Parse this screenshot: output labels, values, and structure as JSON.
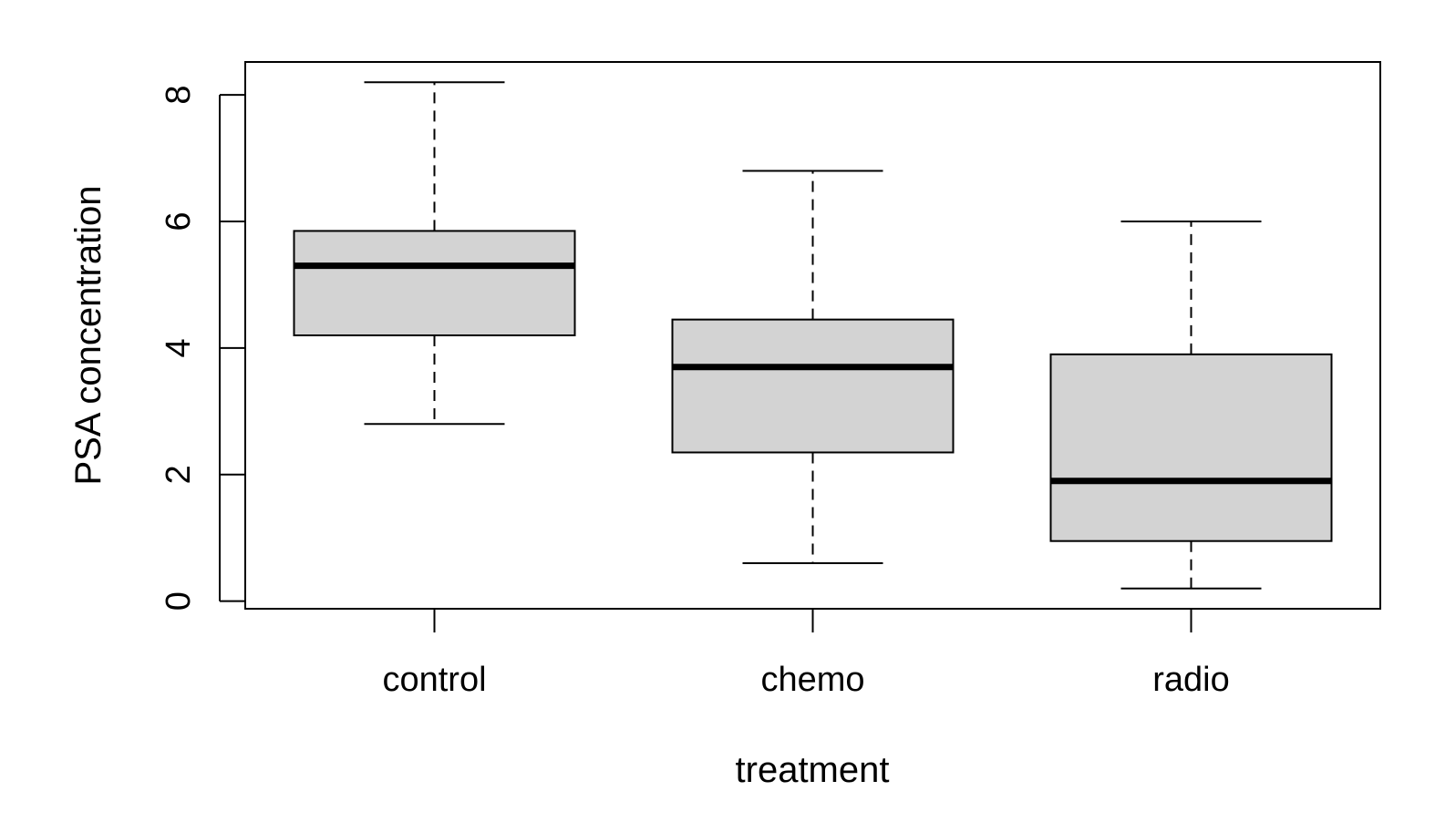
{
  "chart_data": {
    "type": "boxplot",
    "xlabel": "treatment",
    "ylabel": "PSA concentration",
    "categories": [
      "control",
      "chemo",
      "radio"
    ],
    "boxes": [
      {
        "category": "control",
        "min": 2.8,
        "q1": 4.2,
        "median": 5.3,
        "q3": 5.85,
        "max": 8.2
      },
      {
        "category": "chemo",
        "min": 0.6,
        "q1": 2.35,
        "median": 3.7,
        "q3": 4.45,
        "max": 6.8
      },
      {
        "category": "radio",
        "min": 0.2,
        "q1": 0.95,
        "median": 1.9,
        "q3": 3.9,
        "max": 6.0
      }
    ],
    "yticks": [
      0,
      2,
      4,
      6,
      8
    ],
    "ylim": [
      -0.12,
      8.52
    ],
    "grid": false,
    "legend": "none",
    "colors": {
      "box_fill": "#d3d3d3",
      "stroke": "#000000",
      "background": "#ffffff"
    }
  }
}
